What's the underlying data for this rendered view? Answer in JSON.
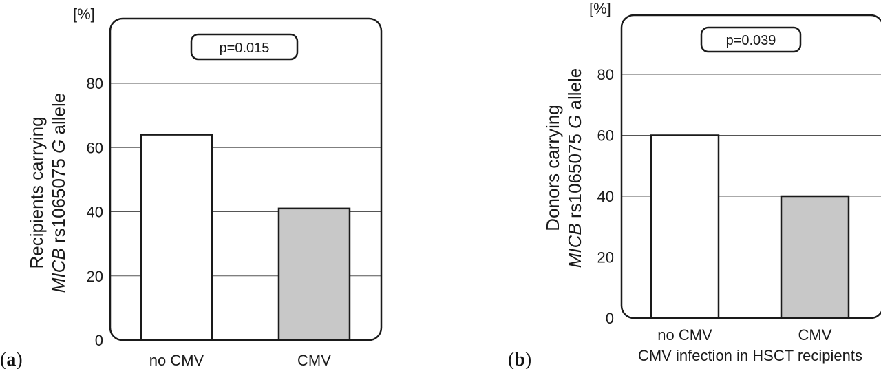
{
  "colors": {
    "frame": "#1a1a1a",
    "gridline": "#555555",
    "no_cmv_fill": "#ffffff",
    "cmv_fill": "#c8c8c8"
  },
  "chart_data": [
    {
      "panel": "(a)",
      "panel_open": "(",
      "panel_letter": "a",
      "panel_close": ")",
      "type": "bar",
      "unit": "[%]",
      "ylabel_line1": "Recipients carrying",
      "ylabel_line2_italic_a": "MICB",
      "ylabel_line2_plain": " rs1065075 ",
      "ylabel_line2_italic_b": "G",
      "ylabel_line2_end": " allele",
      "xlabel": "",
      "annotation": "p=0.015",
      "categories": [
        "no CMV",
        "CMV"
      ],
      "values": [
        64,
        41
      ],
      "ylim": [
        0,
        100
      ],
      "yticks": [
        0,
        20,
        40,
        60,
        80
      ],
      "grid": true
    },
    {
      "panel": "(b)",
      "panel_open": "(",
      "panel_letter": "b",
      "panel_close": ")",
      "type": "bar",
      "unit": "[%]",
      "ylabel_line1": "Donors carrying",
      "ylabel_line2_italic_a": "MICB",
      "ylabel_line2_plain": " rs1065075 ",
      "ylabel_line2_italic_b": "G",
      "ylabel_line2_end": " allele",
      "xlabel": "CMV infection in HSCT recipients",
      "annotation": "p=0.039",
      "categories": [
        "no CMV",
        "CMV"
      ],
      "values": [
        60,
        40
      ],
      "ylim": [
        0,
        100
      ],
      "yticks": [
        0,
        20,
        40,
        60,
        80
      ],
      "grid": true
    }
  ]
}
